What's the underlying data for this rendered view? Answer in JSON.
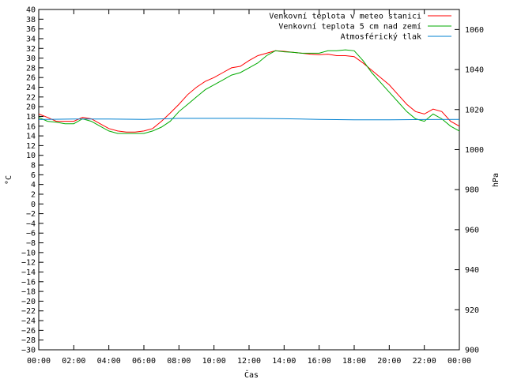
{
  "chart_data": {
    "type": "line",
    "xlabel": "Čas",
    "ylabel": "°C",
    "y2label": "hPa",
    "x_ticks": [
      "00:00",
      "02:00",
      "04:00",
      "06:00",
      "08:00",
      "10:00",
      "12:00",
      "14:00",
      "16:00",
      "18:00",
      "20:00",
      "22:00",
      "00:00"
    ],
    "xlim_hours": [
      0,
      24
    ],
    "ylim": [
      -30,
      40
    ],
    "y_ticks": [
      40,
      38,
      36,
      34,
      32,
      30,
      28,
      26,
      24,
      22,
      20,
      18,
      16,
      14,
      12,
      10,
      8,
      6,
      4,
      2,
      0,
      -2,
      -4,
      -6,
      -8,
      -10,
      -12,
      -14,
      -16,
      -18,
      -20,
      -22,
      -24,
      -26,
      -28,
      -30
    ],
    "y2lim": [
      900,
      1070
    ],
    "y2_ticks": [
      1060,
      1040,
      1020,
      1000,
      980,
      960,
      940,
      920,
      900
    ],
    "grid": false,
    "legend_position": "top-right",
    "series": [
      {
        "name": "Venkovní teplota v meteo stanici",
        "color": "#ff0000",
        "axis": "left",
        "x": [
          0,
          0.5,
          1,
          1.5,
          2,
          2.5,
          3,
          3.5,
          4,
          4.5,
          5,
          5.5,
          6,
          6.5,
          7,
          7.5,
          8,
          8.5,
          9,
          9.5,
          10,
          10.5,
          11,
          11.5,
          12,
          12.5,
          13,
          13.5,
          14,
          14.5,
          15,
          15.5,
          16,
          16.5,
          17,
          17.5,
          18,
          18.5,
          19,
          19.5,
          20,
          20.5,
          21,
          21.5,
          22,
          22.5,
          23,
          23.5,
          24
        ],
        "values": [
          18.5,
          17.8,
          17,
          17,
          17,
          17.8,
          17.5,
          16.5,
          15.5,
          15,
          14.8,
          14.8,
          15,
          15.5,
          17,
          18.7,
          20.5,
          22.5,
          24,
          25.2,
          26,
          27,
          28,
          28.3,
          29.5,
          30.5,
          31,
          31.5,
          31.4,
          31.2,
          31,
          30.8,
          30.7,
          30.8,
          30.5,
          30.5,
          30.3,
          29,
          27.5,
          26,
          24.5,
          22.5,
          20.5,
          19,
          18.5,
          19.5,
          19,
          17,
          16
        ]
      },
      {
        "name": "Venkovní teplota 5 cm nad zemí",
        "color": "#00aa00",
        "axis": "left",
        "x": [
          0,
          0.5,
          1,
          1.5,
          2,
          2.5,
          3,
          3.5,
          4,
          4.5,
          5,
          5.5,
          6,
          6.5,
          7,
          7.5,
          8,
          8.5,
          9,
          9.5,
          10,
          10.5,
          11,
          11.5,
          12,
          12.5,
          13,
          13.5,
          14,
          14.5,
          15,
          15.5,
          16,
          16.5,
          17,
          17.5,
          18,
          18.5,
          19,
          19.5,
          20,
          20.5,
          21,
          21.5,
          22,
          22.5,
          23,
          23.5,
          24
        ],
        "values": [
          17.8,
          17,
          16.8,
          16.5,
          16.5,
          17.5,
          17,
          16,
          15,
          14.5,
          14.5,
          14.5,
          14.5,
          15,
          15.8,
          17,
          19,
          20.5,
          22,
          23.5,
          24.5,
          25.5,
          26.5,
          27,
          28,
          29,
          30.5,
          31.5,
          31.3,
          31.2,
          31,
          31,
          31,
          31.5,
          31.5,
          31.7,
          31.5,
          29.5,
          27,
          25,
          23,
          21,
          19,
          17.5,
          17,
          18.5,
          17.5,
          16,
          15
        ]
      },
      {
        "name": "Atmosférický tlak",
        "color": "#0080d0",
        "axis": "right",
        "x": [
          0,
          2,
          4,
          6,
          8,
          10,
          12,
          14,
          16,
          18,
          20,
          22,
          24
        ],
        "values": [
          1015,
          1015.3,
          1015.3,
          1015.1,
          1015.6,
          1015.6,
          1015.6,
          1015.4,
          1015.1,
          1014.9,
          1014.9,
          1015,
          1015.1
        ]
      }
    ]
  }
}
